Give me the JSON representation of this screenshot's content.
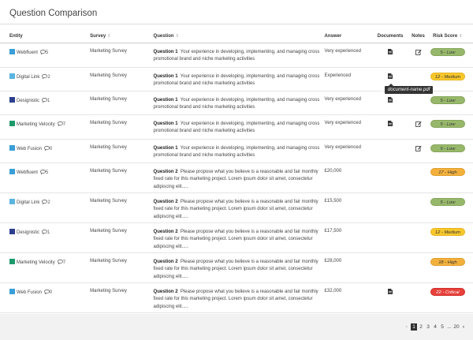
{
  "header": {
    "title": "Question Comparison"
  },
  "columns": {
    "entity": "Entity",
    "survey": "Survey",
    "question": "Question",
    "answer": "Answer",
    "documents": "Documents",
    "notes": "Notes",
    "risk": "Risk Score"
  },
  "rows": [
    {
      "entity": "Webfluent",
      "color": "#3a9fd6",
      "comments": "5",
      "survey": "Marketing Survey",
      "q_label": "Question 1",
      "q_text": "Your experience in developing, implementing, and managing cross promotional brand and niche marketing activities",
      "answer": "Very experienced",
      "doc": true,
      "note": true,
      "risk": "5 - Low",
      "level": "low"
    },
    {
      "entity": "Digital Link",
      "color": "#5ab4e0",
      "comments": "2",
      "survey": "Marketing Survey",
      "q_label": "Question 1",
      "q_text": "Your experience in developing, implementing, and managing cross promotional brand and niche marketing activities",
      "answer": "Experienced",
      "doc": true,
      "note": false,
      "risk": "12 - Medium",
      "level": "medium"
    },
    {
      "entity": "Designistic",
      "color": "#2c3e8c",
      "comments": "1",
      "survey": "Marketing Survey",
      "q_label": "Question 1",
      "q_text": "Your experience in developing, implementing, and managing cross promotional brand and niche marketing activities",
      "answer": "Very experienced",
      "doc": true,
      "note": false,
      "risk": "5 - Low",
      "level": "low"
    },
    {
      "entity": "Marketing Velocity",
      "color": "#1d9a6c",
      "comments": "7",
      "survey": "Marketing Survey",
      "q_label": "Question 1",
      "q_text": "Your experience in developing, implementing, and managing cross promotional brand and niche marketing activities",
      "answer": "Very experienced",
      "doc": true,
      "note": true,
      "risk": "5 - Low",
      "level": "low"
    },
    {
      "entity": "Web Fusion",
      "color": "#3a9fd6",
      "comments": "0",
      "survey": "Marketing Survey",
      "q_label": "Question 1",
      "q_text": "Your experience in developing, implementing, and managing cross promotional brand and niche marketing activities",
      "answer": "Very experienced",
      "doc": false,
      "note": true,
      "risk": "5 - Low",
      "level": "low"
    },
    {
      "entity": "Webfluent",
      "color": "#3a9fd6",
      "comments": "5",
      "survey": "Marketing Survey",
      "q_label": "Question 2",
      "q_text": "Please propose what you believe is a reasonable and fair monthly fixed rate for this marketing project. Lorem ipsum dolor sit amet, consectetur adipiscing elit.....",
      "answer": "£20,000",
      "doc": false,
      "note": false,
      "risk": "17 - High",
      "level": "high"
    },
    {
      "entity": "Digital Link",
      "color": "#5ab4e0",
      "comments": "2",
      "survey": "Marketing Survey",
      "q_label": "Question 2",
      "q_text": "Please propose what you believe is a reasonable and fair monthly fixed rate for this marketing project. Lorem ipsum dolor sit amet, consectetur adipiscing elit.....",
      "answer": "£15,500",
      "doc": false,
      "note": false,
      "risk": "5 - Low",
      "level": "low"
    },
    {
      "entity": "Designistic",
      "color": "#2c3e8c",
      "comments": "1",
      "survey": "Marketing Survey",
      "q_label": "Question 2",
      "q_text": "Please propose what you believe is a reasonable and fair monthly fixed rate for this marketing project. Lorem ipsum dolor sit amet, consectetur adipiscing elit.....",
      "answer": "£17,500",
      "doc": false,
      "note": false,
      "risk": "12 - Medium",
      "level": "medium"
    },
    {
      "entity": "Marketing Velocity",
      "color": "#1d9a6c",
      "comments": "7",
      "survey": "Marketing Survey",
      "q_label": "Question 2",
      "q_text": "Please propose what you believe is a reasonable and fair monthly fixed rate for this marketing project. Lorem ipsum dolor sit amet, consectetur adipiscing elit.....",
      "answer": "£28,000",
      "doc": false,
      "note": false,
      "risk": "18 - High",
      "level": "high"
    },
    {
      "entity": "Web Fusion",
      "color": "#3a9fd6",
      "comments": "0",
      "survey": "Marketing Survey",
      "q_label": "Question 2",
      "q_text": "Please propose what you believe is a reasonable and fair monthly fixed rate for this marketing project. Lorem ipsum dolor sit amet, consectetur adipiscing elit.....",
      "answer": "£32,000",
      "doc": true,
      "note": false,
      "risk": "22 - Critical",
      "level": "critical"
    }
  ],
  "row_heights": [],
  "tooltip": {
    "text": "document-name.pdf"
  },
  "pager": {
    "pages": [
      "1",
      "2",
      "3",
      "4",
      "5",
      "...",
      "20"
    ],
    "current": "1"
  }
}
